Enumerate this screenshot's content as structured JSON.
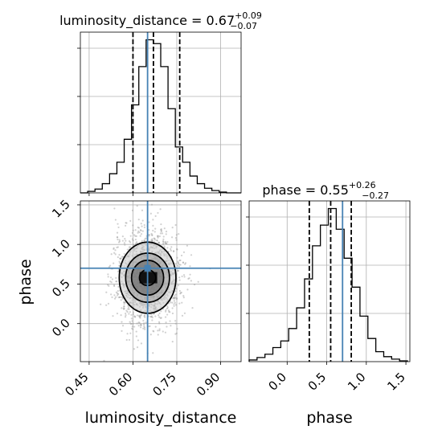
{
  "chart_data": [
    {
      "type": "histogram",
      "panel": "luminosity_distance-1d",
      "title": "luminosity_distance = 0.67",
      "title_sup": "+0.09",
      "title_sub": "−0.07",
      "xlim": [
        0.42,
        0.97
      ],
      "grid": true,
      "bin_edges": [
        0.42,
        0.445,
        0.47,
        0.495,
        0.52,
        0.545,
        0.57,
        0.595,
        0.62,
        0.645,
        0.67,
        0.695,
        0.72,
        0.745,
        0.77,
        0.795,
        0.82,
        0.845,
        0.87,
        0.895,
        0.92,
        0.945,
        0.97
      ],
      "counts": [
        0,
        2,
        5,
        12,
        25,
        40,
        70,
        115,
        165,
        200,
        195,
        165,
        110,
        60,
        40,
        22,
        12,
        6,
        3,
        1,
        0,
        0
      ],
      "quantile_lines": [
        0.6,
        0.67,
        0.76
      ],
      "truth": 0.65
    },
    {
      "type": "scatter-contour",
      "panel": "phase-vs-luminosity_distance",
      "xlabel": "luminosity_distance",
      "ylabel": "phase",
      "x_ticks": [
        "0.45",
        "0.60",
        "0.75",
        "0.90"
      ],
      "x_tick_values": [
        0.45,
        0.6,
        0.75,
        0.9
      ],
      "y_ticks": [
        "0.0",
        "0.5",
        "1.0",
        "1.5"
      ],
      "y_tick_values": [
        0.0,
        0.5,
        1.0,
        1.5
      ],
      "xlim": [
        0.42,
        0.97
      ],
      "ylim": [
        -0.48,
        1.55
      ],
      "grid": true,
      "center": [
        0.65,
        0.58
      ],
      "spread": [
        0.055,
        0.3
      ],
      "contour_levels": [
        {
          "rx": 0.028,
          "ry": 0.1
        },
        {
          "rx": 0.055,
          "ry": 0.22
        },
        {
          "rx": 0.075,
          "ry": 0.31
        },
        {
          "rx": 0.097,
          "ry": 0.45
        }
      ],
      "truth": [
        0.65,
        0.7
      ]
    },
    {
      "type": "histogram",
      "panel": "phase-1d",
      "title": "phase = 0.55",
      "title_sup": "+0.26",
      "title_sub": "−0.27",
      "xlabel": "phase",
      "x_ticks": [
        "0.0",
        "0.5",
        "1.0",
        "1.5"
      ],
      "x_tick_values": [
        0.0,
        0.5,
        1.0,
        1.5
      ],
      "xlim": [
        -0.48,
        1.55
      ],
      "grid": true,
      "bin_edges": [
        -0.48,
        -0.38,
        -0.28,
        -0.18,
        -0.08,
        0.02,
        0.12,
        0.22,
        0.32,
        0.42,
        0.52,
        0.62,
        0.72,
        0.82,
        0.92,
        1.02,
        1.12,
        1.22,
        1.32,
        1.42,
        1.52
      ],
      "counts": [
        2,
        5,
        9,
        17,
        25,
        40,
        65,
        100,
        140,
        165,
        185,
        160,
        125,
        90,
        55,
        28,
        12,
        6,
        3,
        1
      ],
      "quantile_lines": [
        0.28,
        0.55,
        0.81
      ],
      "truth": 0.7
    }
  ],
  "colors": {
    "truth": "#4682b4",
    "hist": "#000000",
    "grid": "#b0b0b0",
    "points": "#9a9a9a"
  }
}
